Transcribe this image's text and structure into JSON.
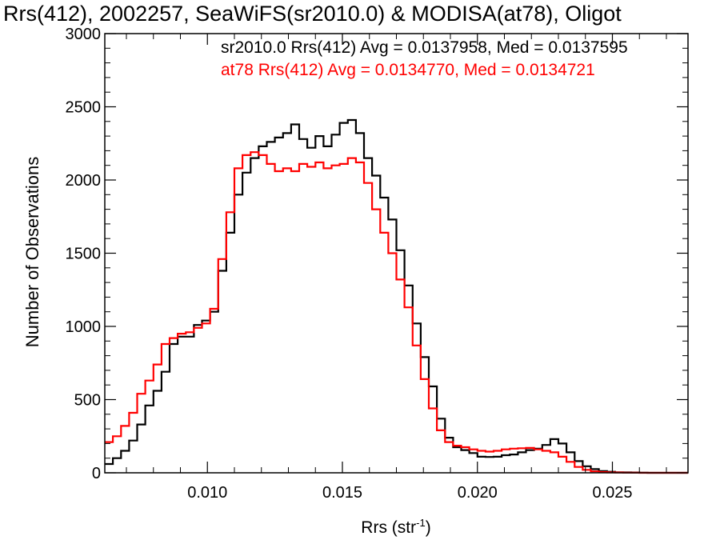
{
  "title": "Rrs(412), 2002257, SeaWiFS(sr2010.0) & MODISA(at78), Oligot",
  "stats": [
    {
      "text": "sr2010.0 Rrs(412) Avg = 0.0137958, Med = 0.0137595",
      "color": "#000000"
    },
    {
      "text": "at78 Rrs(412) Avg = 0.0134770, Med = 0.0134721",
      "color": "#ff0000"
    }
  ],
  "chart_data": {
    "type": "line",
    "style": "step histogram",
    "xlabel": "Rrs (str",
    "xlabel_superscript": "-1",
    "xlabel_close": ")",
    "ylabel": "Number of Observations",
    "xlim": [
      0.0062,
      0.0278
    ],
    "ylim": [
      0,
      3000
    ],
    "x_ticks": [
      "0.010",
      "0.015",
      "0.020",
      "0.025"
    ],
    "x_tick_values": [
      0.01,
      0.015,
      0.02,
      0.025
    ],
    "y_ticks": [
      "0",
      "500",
      "1000",
      "1500",
      "2000",
      "2500",
      "3000"
    ],
    "y_tick_values": [
      0,
      500,
      1000,
      1500,
      2000,
      2500,
      3000
    ],
    "series": [
      {
        "color": "#000000",
        "x": [
          0.0062,
          0.0065,
          0.0068,
          0.0071,
          0.0074,
          0.0077,
          0.008,
          0.0083,
          0.0086,
          0.0089,
          0.0092,
          0.0095,
          0.0098,
          0.0101,
          0.0104,
          0.0107,
          0.011,
          0.0113,
          0.0116,
          0.0119,
          0.0122,
          0.0125,
          0.0128,
          0.0131,
          0.0134,
          0.0137,
          0.014,
          0.0143,
          0.0146,
          0.0149,
          0.0152,
          0.0155,
          0.0158,
          0.0161,
          0.0164,
          0.0167,
          0.017,
          0.0173,
          0.0176,
          0.0179,
          0.0182,
          0.0185,
          0.0188,
          0.0191,
          0.0194,
          0.0197,
          0.02,
          0.0203,
          0.0206,
          0.0209,
          0.0212,
          0.0215,
          0.0218,
          0.0221,
          0.0224,
          0.0227,
          0.023,
          0.0233,
          0.0236,
          0.0239,
          0.0242,
          0.0245,
          0.0248,
          0.0251,
          0.0254,
          0.0257,
          0.026,
          0.0263,
          0.0266,
          0.0269,
          0.0272,
          0.0275,
          0.0278
        ],
        "values": [
          60,
          100,
          150,
          220,
          330,
          460,
          560,
          690,
          880,
          930,
          930,
          1010,
          1040,
          1100,
          1380,
          1640,
          1900,
          2050,
          2150,
          2230,
          2260,
          2290,
          2320,
          2380,
          2280,
          2220,
          2300,
          2230,
          2310,
          2390,
          2410,
          2320,
          2150,
          2030,
          1880,
          1730,
          1520,
          1280,
          1020,
          790,
          590,
          370,
          240,
          175,
          155,
          135,
          110,
          108,
          110,
          120,
          125,
          140,
          155,
          165,
          190,
          230,
          200,
          140,
          80,
          45,
          25,
          12,
          7,
          4,
          3,
          2,
          1,
          0,
          0,
          0,
          0,
          0,
          0
        ]
      },
      {
        "color": "#ff0000",
        "x": [
          0.0062,
          0.0065,
          0.0068,
          0.0071,
          0.0074,
          0.0077,
          0.008,
          0.0083,
          0.0086,
          0.0089,
          0.0092,
          0.0095,
          0.0098,
          0.0101,
          0.0104,
          0.0107,
          0.011,
          0.0113,
          0.0116,
          0.0119,
          0.0122,
          0.0125,
          0.0128,
          0.0131,
          0.0134,
          0.0137,
          0.014,
          0.0143,
          0.0146,
          0.0149,
          0.0152,
          0.0155,
          0.0158,
          0.0161,
          0.0164,
          0.0167,
          0.017,
          0.0173,
          0.0176,
          0.0179,
          0.0182,
          0.0185,
          0.0188,
          0.0191,
          0.0194,
          0.0197,
          0.02,
          0.0203,
          0.0206,
          0.0209,
          0.0212,
          0.0215,
          0.0218,
          0.0221,
          0.0224,
          0.0227,
          0.023,
          0.0233,
          0.0236,
          0.0239,
          0.0242,
          0.0245,
          0.0248,
          0.0251,
          0.0254,
          0.0257,
          0.026,
          0.0263,
          0.0266,
          0.0269,
          0.0272,
          0.0275,
          0.0278
        ],
        "values": [
          210,
          250,
          320,
          410,
          540,
          630,
          740,
          880,
          920,
          950,
          960,
          990,
          1020,
          1120,
          1460,
          1780,
          2080,
          2170,
          2190,
          2170,
          2110,
          2060,
          2080,
          2060,
          2110,
          2090,
          2120,
          2080,
          2100,
          2110,
          2150,
          2120,
          1980,
          1800,
          1640,
          1500,
          1320,
          1130,
          870,
          640,
          440,
          290,
          210,
          185,
          175,
          160,
          150,
          145,
          150,
          160,
          165,
          168,
          170,
          160,
          150,
          140,
          110,
          75,
          40,
          20,
          10,
          5,
          3,
          2,
          1,
          1,
          0,
          0,
          0,
          0,
          0,
          0,
          0
        ]
      }
    ]
  }
}
